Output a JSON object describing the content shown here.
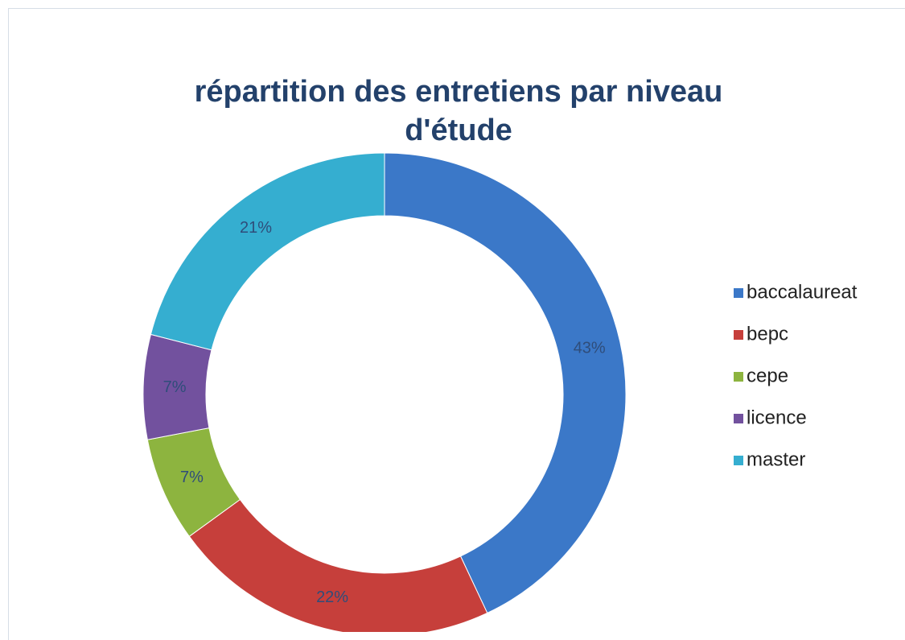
{
  "chart_data": {
    "type": "donut",
    "title": "répartition des entretiens par niveau d'étude",
    "categories": [
      "baccalaureat",
      "bepc",
      "cepe",
      "licence",
      "master"
    ],
    "values": [
      43,
      22,
      7,
      7,
      21
    ],
    "value_labels": [
      "43%",
      "22%",
      "7%",
      "7%",
      "21%"
    ],
    "colors": [
      "#3b78c8",
      "#c63f3b",
      "#8db43f",
      "#72519e",
      "#35aed0"
    ],
    "legend": "right"
  }
}
